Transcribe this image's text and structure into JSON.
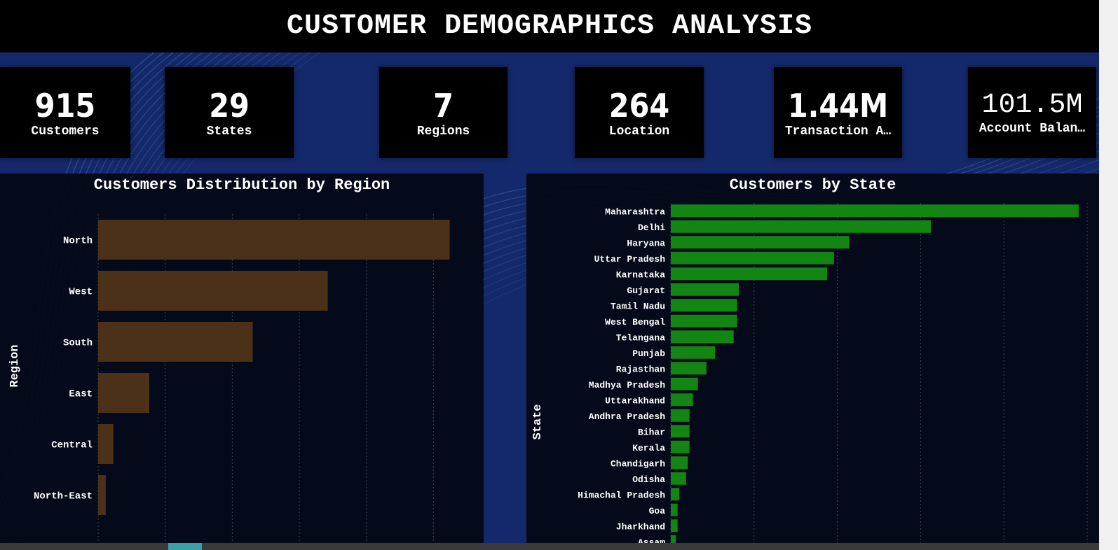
{
  "title": "CUSTOMER DEMOGRAPHICS ANALYSIS",
  "kpis": [
    {
      "value": "915",
      "label": "Customers"
    },
    {
      "value": "29",
      "label": "States"
    },
    {
      "value": "7",
      "label": "Regions"
    },
    {
      "value": "264",
      "label": "Location"
    },
    {
      "value": "1.44M",
      "label": "Transaction A…"
    },
    {
      "value": "101.5M",
      "label": "Account Balan…"
    }
  ],
  "colors": {
    "region_bar": "#4a3118",
    "state_bar": "#128512",
    "background": "#14296b"
  },
  "chart_data": [
    {
      "type": "bar",
      "orientation": "horizontal",
      "title": "Customers Distribution by Region",
      "ylabel": "Region",
      "xlabel": "",
      "categories": [
        "North",
        "West",
        "South",
        "East",
        "Central",
        "North-East"
      ],
      "values": [
        323,
        211,
        142,
        47,
        14,
        7
      ],
      "xlim": [
        0,
        340
      ],
      "grid": true
    },
    {
      "type": "bar",
      "orientation": "horizontal",
      "title": "Customers by State",
      "ylabel": "State",
      "xlabel": "",
      "categories": [
        "Maharashtra",
        "Delhi",
        "Haryana",
        "Uttar Pradesh",
        "Karnataka",
        "Gujarat",
        "Tamil Nadu",
        "West Bengal",
        "Telangana",
        "Punjab",
        "Rajasthan",
        "Madhya Pradesh",
        "Uttarakhand",
        "Andhra Pradesh",
        "Bihar",
        "Kerala",
        "Chandigarh",
        "Odisha",
        "Himachal Pradesh",
        "Goa",
        "Jharkhand",
        "Assam"
      ],
      "values": [
        240,
        153,
        105,
        96,
        92,
        40,
        39,
        39,
        37,
        26,
        21,
        16,
        13,
        11,
        11,
        11,
        10,
        9,
        5,
        4,
        4,
        3
      ],
      "xlim": [
        0,
        245
      ],
      "grid": true
    }
  ]
}
